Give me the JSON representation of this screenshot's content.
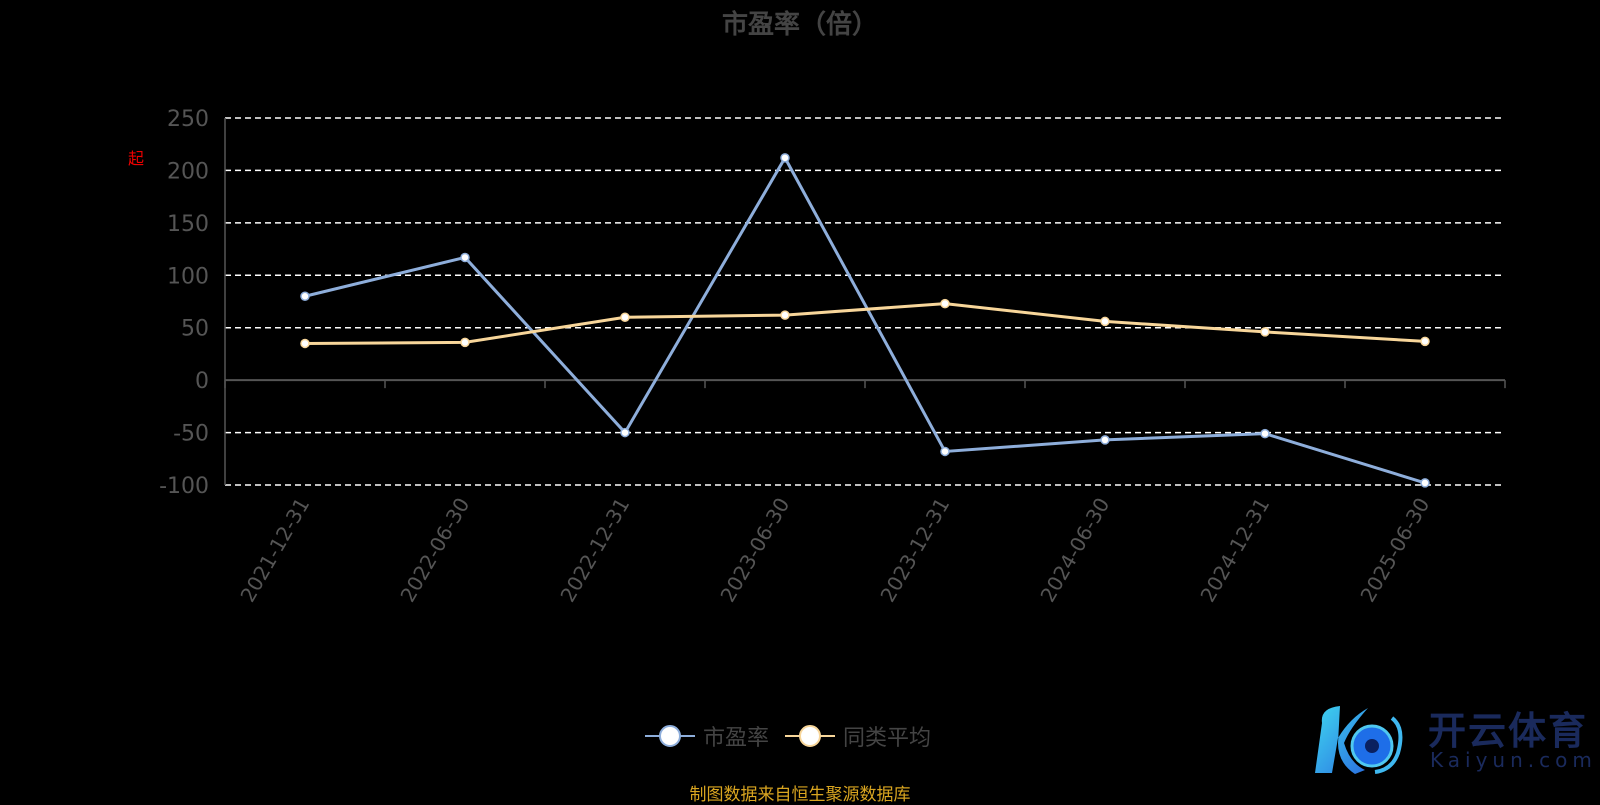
{
  "chart_data": {
    "type": "line",
    "title": "市盈率（倍）",
    "categories": [
      "2021-12-31",
      "2022-06-30",
      "2022-12-31",
      "2023-06-30",
      "2023-12-31",
      "2024-06-30",
      "2024-12-31",
      "2025-06-30"
    ],
    "series": [
      {
        "name": "市盈率",
        "color": "#8eaedb",
        "values": [
          80,
          117,
          -50,
          212,
          -68,
          -57,
          -51,
          -98
        ]
      },
      {
        "name": "同类平均",
        "color": "#f8d69a",
        "values": [
          35,
          36,
          60,
          62,
          73,
          56,
          46,
          37
        ]
      }
    ],
    "yticks": [
      "250",
      "200",
      "150",
      "100",
      "50",
      "0",
      "-50",
      "-100"
    ],
    "ylim": [
      -100,
      250
    ],
    "grid": true,
    "legend": "bottom-center"
  },
  "annotation": "起",
  "source": "制图数据来自恒生聚源数据库",
  "logo": {
    "name": "开云体育",
    "url": "Kaiyun.com"
  }
}
